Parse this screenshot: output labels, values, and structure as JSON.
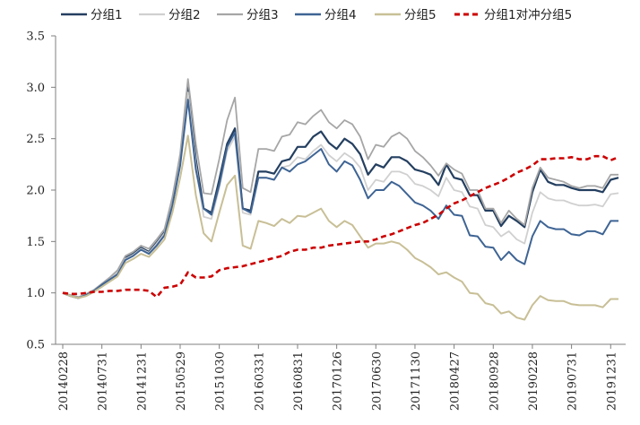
{
  "chart_data": {
    "type": "line",
    "title": "",
    "xlabel": "",
    "ylabel": "",
    "ylim": [
      0.5,
      3.5
    ],
    "yticks": [
      0.5,
      1.0,
      1.5,
      2.0,
      2.5,
      3.0,
      3.5
    ],
    "ytick_labels": [
      "0.5",
      "1.0",
      "1.5",
      "2.0",
      "2.5",
      "3.0",
      "3.5"
    ],
    "xtick_labels": [
      "20140228",
      "20140731",
      "20141231",
      "20150529",
      "20151030",
      "20160331",
      "20160831",
      "20170126",
      "20170630",
      "20171130",
      "20180427",
      "20180928",
      "20190228",
      "20190731",
      "20191231"
    ],
    "xtick_positions": [
      0,
      5,
      10,
      15,
      20,
      25,
      30,
      35,
      40,
      45,
      50,
      55,
      60,
      65,
      70
    ],
    "x_count": 72,
    "legend_position": "top",
    "series": [
      {
        "name": "分组1",
        "color": "#243f60",
        "width": 2.2,
        "dash": "",
        "values": [
          1.0,
          0.97,
          0.95,
          0.98,
          1.02,
          1.08,
          1.14,
          1.2,
          1.34,
          1.38,
          1.44,
          1.4,
          1.49,
          1.59,
          1.9,
          2.3,
          3.0,
          2.3,
          1.82,
          1.78,
          2.1,
          2.45,
          2.6,
          1.82,
          1.8,
          2.18,
          2.18,
          2.16,
          2.28,
          2.3,
          2.42,
          2.42,
          2.52,
          2.57,
          2.46,
          2.4,
          2.5,
          2.45,
          2.35,
          2.15,
          2.25,
          2.22,
          2.32,
          2.32,
          2.28,
          2.2,
          2.18,
          2.15,
          2.05,
          2.25,
          2.12,
          2.1,
          1.95,
          1.95,
          1.8,
          1.8,
          1.65,
          1.75,
          1.7,
          1.64,
          1.98,
          2.2,
          2.08,
          2.05,
          2.05,
          2.02,
          2.0,
          2.0,
          2.0,
          1.98,
          2.1,
          2.12
        ]
      },
      {
        "name": "分组2",
        "color": "#d0d0d0",
        "width": 1.8,
        "dash": "",
        "values": [
          1.0,
          0.97,
          0.96,
          0.98,
          1.02,
          1.08,
          1.14,
          1.2,
          1.33,
          1.37,
          1.43,
          1.39,
          1.48,
          1.58,
          1.88,
          2.28,
          2.95,
          2.25,
          1.74,
          1.72,
          2.02,
          2.38,
          2.52,
          1.78,
          1.76,
          2.12,
          2.12,
          2.1,
          2.22,
          2.24,
          2.32,
          2.3,
          2.38,
          2.44,
          2.34,
          2.28,
          2.36,
          2.31,
          2.22,
          2.0,
          2.1,
          2.08,
          2.18,
          2.18,
          2.15,
          2.06,
          2.04,
          2.0,
          1.94,
          2.12,
          2.0,
          1.98,
          1.84,
          1.82,
          1.66,
          1.64,
          1.55,
          1.6,
          1.52,
          1.48,
          1.78,
          1.98,
          1.92,
          1.9,
          1.9,
          1.87,
          1.85,
          1.85,
          1.86,
          1.84,
          1.96,
          1.97
        ]
      },
      {
        "name": "分组3",
        "color": "#a6a6a6",
        "width": 1.8,
        "dash": "",
        "values": [
          1.0,
          0.98,
          0.96,
          0.99,
          1.03,
          1.09,
          1.15,
          1.22,
          1.36,
          1.4,
          1.46,
          1.43,
          1.52,
          1.62,
          1.93,
          2.35,
          3.08,
          2.45,
          1.97,
          1.96,
          2.3,
          2.68,
          2.9,
          2.02,
          1.98,
          2.4,
          2.4,
          2.38,
          2.52,
          2.54,
          2.66,
          2.64,
          2.72,
          2.78,
          2.66,
          2.6,
          2.68,
          2.64,
          2.52,
          2.3,
          2.44,
          2.42,
          2.52,
          2.56,
          2.5,
          2.38,
          2.32,
          2.24,
          2.14,
          2.26,
          2.2,
          2.16,
          2.0,
          2.0,
          1.82,
          1.82,
          1.68,
          1.8,
          1.72,
          1.66,
          2.02,
          2.22,
          2.12,
          2.1,
          2.08,
          2.04,
          2.02,
          2.04,
          2.04,
          2.02,
          2.15,
          2.15
        ]
      },
      {
        "name": "分组4",
        "color": "#3e6494",
        "width": 2.0,
        "dash": "",
        "values": [
          1.0,
          0.97,
          0.95,
          0.98,
          1.02,
          1.08,
          1.13,
          1.18,
          1.32,
          1.36,
          1.42,
          1.38,
          1.46,
          1.56,
          1.85,
          2.24,
          2.88,
          2.2,
          1.82,
          1.76,
          2.05,
          2.42,
          2.56,
          1.82,
          1.78,
          2.12,
          2.12,
          2.1,
          2.22,
          2.18,
          2.25,
          2.28,
          2.34,
          2.4,
          2.25,
          2.18,
          2.28,
          2.24,
          2.1,
          1.92,
          2.0,
          2.0,
          2.08,
          2.04,
          1.96,
          1.88,
          1.85,
          1.8,
          1.72,
          1.85,
          1.76,
          1.75,
          1.56,
          1.55,
          1.45,
          1.44,
          1.32,
          1.4,
          1.32,
          1.28,
          1.55,
          1.7,
          1.64,
          1.62,
          1.62,
          1.57,
          1.56,
          1.6,
          1.6,
          1.57,
          1.7,
          1.7
        ]
      },
      {
        "name": "分组5",
        "color": "#c8bf96",
        "width": 2.0,
        "dash": "",
        "values": [
          1.0,
          0.97,
          0.95,
          0.97,
          1.01,
          1.06,
          1.11,
          1.16,
          1.29,
          1.33,
          1.38,
          1.35,
          1.43,
          1.52,
          1.78,
          2.12,
          2.53,
          1.95,
          1.58,
          1.5,
          1.78,
          2.05,
          2.14,
          1.46,
          1.43,
          1.7,
          1.68,
          1.65,
          1.72,
          1.68,
          1.75,
          1.74,
          1.78,
          1.82,
          1.7,
          1.64,
          1.7,
          1.66,
          1.55,
          1.44,
          1.48,
          1.48,
          1.5,
          1.48,
          1.42,
          1.34,
          1.3,
          1.25,
          1.18,
          1.2,
          1.15,
          1.11,
          1.0,
          0.99,
          0.9,
          0.88,
          0.8,
          0.82,
          0.76,
          0.74,
          0.88,
          0.97,
          0.93,
          0.92,
          0.92,
          0.89,
          0.88,
          0.88,
          0.88,
          0.86,
          0.94,
          0.94
        ]
      },
      {
        "name": "分组1对冲分组5",
        "color": "#cc0000",
        "width": 2.6,
        "dash": "6,4",
        "values": [
          1.0,
          0.99,
          0.99,
          1.0,
          1.01,
          1.01,
          1.02,
          1.02,
          1.03,
          1.03,
          1.03,
          1.02,
          0.96,
          1.05,
          1.06,
          1.08,
          1.2,
          1.15,
          1.15,
          1.16,
          1.22,
          1.24,
          1.25,
          1.26,
          1.28,
          1.3,
          1.32,
          1.34,
          1.36,
          1.4,
          1.42,
          1.42,
          1.44,
          1.44,
          1.46,
          1.47,
          1.48,
          1.49,
          1.5,
          1.5,
          1.52,
          1.55,
          1.57,
          1.6,
          1.63,
          1.66,
          1.68,
          1.72,
          1.76,
          1.82,
          1.87,
          1.9,
          1.94,
          1.98,
          2.02,
          2.05,
          2.08,
          2.12,
          2.17,
          2.2,
          2.24,
          2.3,
          2.3,
          2.31,
          2.31,
          2.32,
          2.3,
          2.3,
          2.33,
          2.33,
          2.29,
          2.32
        ]
      }
    ]
  }
}
